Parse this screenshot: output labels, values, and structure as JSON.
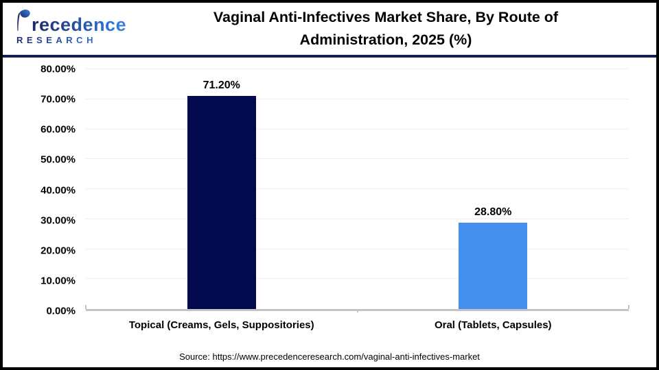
{
  "header": {
    "logo": {
      "brand": "Precedence",
      "research": "RESEARCH"
    },
    "title_line1": "Vaginal Anti-Infectives Market  Share, By Route of",
    "title_line2": "Administration, 2025 (%)"
  },
  "chart_data": {
    "type": "bar",
    "title": "Vaginal Anti-Infectives Market Share, By Route of Administration, 2025 (%)",
    "categories": [
      "Topical (Creams, Gels, Suppositories)",
      "Oral (Tablets, Capsules)"
    ],
    "values": [
      71.2,
      28.8
    ],
    "value_labels": [
      "71.20%",
      "28.80%"
    ],
    "bar_colors": [
      "#02094e",
      "#4590ee"
    ],
    "xlabel": "",
    "ylabel": "",
    "ylim": [
      0,
      80
    ],
    "ytick_step": 10,
    "ytick_labels": [
      "0.00%",
      "10.00%",
      "20.00%",
      "30.00%",
      "40.00%",
      "50.00%",
      "60.00%",
      "70.00%",
      "80.00%"
    ],
    "grid": true,
    "legend": false
  },
  "footer": {
    "source": "Source: https://www.precedenceresearch.com/vaginal-anti-infectives-market"
  },
  "colors": {
    "bar_topical": "#02094e",
    "bar_oral": "#4590ee",
    "header_divider": "#151f4e",
    "gridline": "#efefef",
    "axis_line": "#c3c3c3",
    "logo_navy": "#1b2a6b",
    "logo_blue": "#2e6fd8"
  }
}
